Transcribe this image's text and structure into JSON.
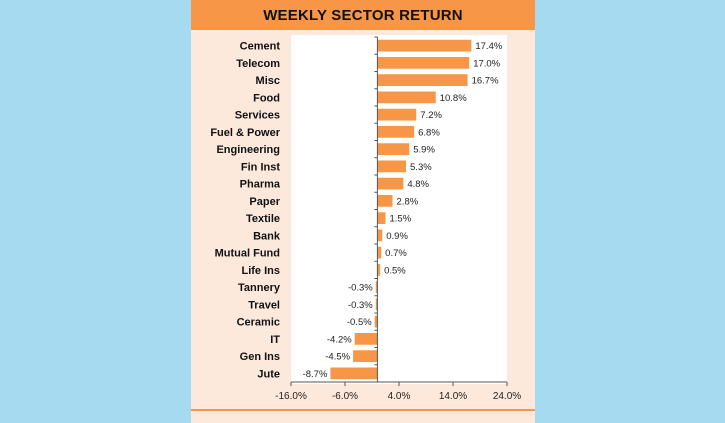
{
  "chart_data": {
    "type": "bar",
    "orientation": "horizontal",
    "title": "WEEKLY SECTOR RETURN",
    "xlabel": "",
    "ylabel": "",
    "categories": [
      "Cement",
      "Telecom",
      "Misc",
      "Food",
      "Services",
      "Fuel & Power",
      "Engineering",
      "Fin Inst",
      "Pharma",
      "Paper",
      "Textile",
      "Bank",
      "Mutual Fund",
      "Life Ins",
      "Tannery",
      "Travel",
      "Ceramic",
      "IT",
      "Gen Ins",
      "Jute"
    ],
    "values": [
      17.4,
      17.0,
      16.7,
      10.8,
      7.2,
      6.8,
      5.9,
      5.3,
      4.8,
      2.8,
      1.5,
      0.9,
      0.7,
      0.5,
      -0.3,
      -0.3,
      -0.5,
      -4.2,
      -4.5,
      -8.7
    ],
    "value_labels": [
      "17.4%",
      "17.0%",
      "16.7%",
      "10.8%",
      "7.2%",
      "6.8%",
      "5.9%",
      "5.3%",
      "4.8%",
      "2.8%",
      "1.5%",
      "0.9%",
      "0.7%",
      "0.5%",
      "-0.3%",
      "-0.3%",
      "-0.5%",
      "-4.2%",
      "-4.5%",
      "-8.7%"
    ],
    "xlim": [
      -16.0,
      24.0
    ],
    "xticks": [
      -16.0,
      -6.0,
      4.0,
      14.0,
      24.0
    ],
    "xtick_labels": [
      "-16.0%",
      "-6.0%",
      "4.0%",
      "14.0%",
      "24.0%"
    ],
    "grid": false,
    "bar_color": "#f79646",
    "plot_background": "#ffffff",
    "card_background": "#fde9dc"
  }
}
